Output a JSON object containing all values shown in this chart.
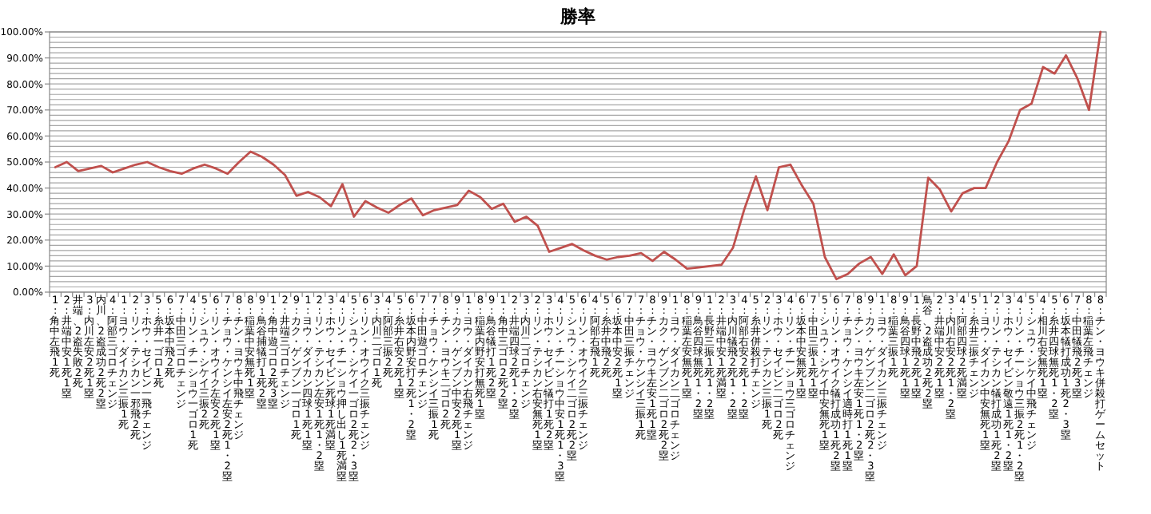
{
  "chart_data": {
    "type": "line",
    "title": "勝率",
    "color": "#c0504d",
    "grid": "y",
    "ylim": [
      0,
      100
    ],
    "yticks": [
      {
        "value": 0,
        "label": "0.00%"
      },
      {
        "value": 2,
        "label": null
      },
      {
        "value": 4,
        "label": null
      },
      {
        "value": 6,
        "label": null
      },
      {
        "value": 8,
        "label": null
      },
      {
        "value": 10,
        "label": "10.00%"
      },
      {
        "value": 12,
        "label": null
      },
      {
        "value": 14,
        "label": null
      },
      {
        "value": 16,
        "label": null
      },
      {
        "value": 18,
        "label": null
      },
      {
        "value": 20,
        "label": "20.00%"
      },
      {
        "value": 22,
        "label": null
      },
      {
        "value": 24,
        "label": null
      },
      {
        "value": 26,
        "label": null
      },
      {
        "value": 28,
        "label": null
      },
      {
        "value": 30,
        "label": "30.00%"
      },
      {
        "value": 32,
        "label": null
      },
      {
        "value": 34,
        "label": null
      },
      {
        "value": 36,
        "label": null
      },
      {
        "value": 38,
        "label": null
      },
      {
        "value": 40,
        "label": "40.00%"
      },
      {
        "value": 42,
        "label": null
      },
      {
        "value": 44,
        "label": null
      },
      {
        "value": 46,
        "label": null
      },
      {
        "value": 48,
        "label": null
      },
      {
        "value": 50,
        "label": "50.00%"
      },
      {
        "value": 52,
        "label": null
      },
      {
        "value": 54,
        "label": null
      },
      {
        "value": 56,
        "label": null
      },
      {
        "value": 58,
        "label": null
      },
      {
        "value": 60,
        "label": "60.00%"
      },
      {
        "value": 62,
        "label": null
      },
      {
        "value": 64,
        "label": null
      },
      {
        "value": 66,
        "label": null
      },
      {
        "value": 68,
        "label": null
      },
      {
        "value": 70,
        "label": "70.00%"
      },
      {
        "value": 72,
        "label": null
      },
      {
        "value": 74,
        "label": null
      },
      {
        "value": 76,
        "label": null
      },
      {
        "value": 78,
        "label": null
      },
      {
        "value": 80,
        "label": "80.00%"
      },
      {
        "value": 82,
        "label": null
      },
      {
        "value": 84,
        "label": null
      },
      {
        "value": 86,
        "label": null
      },
      {
        "value": 88,
        "label": null
      },
      {
        "value": 90,
        "label": "90.00%"
      },
      {
        "value": 92,
        "label": null
      },
      {
        "value": 94,
        "label": null
      },
      {
        "value": 96,
        "label": null
      },
      {
        "value": 98,
        "label": null
      },
      {
        "value": 100,
        "label": "100.00%"
      }
    ],
    "categories": [
      "1:角中左飛1死",
      "2:井端中安1死1塁",
      "井端、2盗失敗2死",
      "3:内川左安2死1塁",
      "内川、2盗成功2死2塁",
      "4:阿部三ゴロチェンジ",
      "1:ヨウ・ダイカン三振1死",
      "2:リン・テシカン一邪飛2死",
      "3:ホウ・セイビン一飛チェンジ",
      "5:糸井一ゴロ1死",
      "6:坂本中飛2死",
      "7:中田三ゴロチェンジ",
      "4:リン・チーショウ一ゴロ1死",
      "5:シュウ・シケイ三振2死",
      "6:リン・オウイク左安2死1塁",
      "7:チョウ・ケンシイ左安2死1・2塁",
      "8:チン・ヨウキ中飛チェンジ",
      "8:稲葉中安無死1塁",
      "9:鳥谷捕犠打1死2塁",
      "1:角中遊ゴロ2死3塁",
      "2:井端三ゴロチェンジ",
      "9:カク・ゲンブン一ゴロ1死",
      "1:ヨウ・ダイカン四球1死1塁",
      "2:リン・テシカン左安1死1・2塁",
      "3:ホウ・セイビン死球1死満塁",
      "4:リン・チーショウ押し出し1死満塁",
      "5:シュウ・シケイ一ゴロ2死2・3塁",
      "6:リン・オウイク三振チェンジ",
      "3:内川二ゴロ1死",
      "4:阿部三振2死",
      "5:糸井右安2死1塁",
      "6:坂本内野安打2死1・2塁",
      "7:中田遊ゴロチェンジ",
      "7:チョウ・ケンシイ三振1死",
      "8:チン・ヨウキ二ゴロ2死",
      "9:カク・ゲンブン中安2死1塁",
      "1:ヨウ・ダイカン右飛チェンジ",
      "8:稲葉内野安打無死1塁",
      "9:鳥谷犠打1死2塁",
      "1:角中三ゴロ2死2塁",
      "2:井端四球2死1・2塁",
      "3:内川二ゴロチェンジ",
      "2:リン・テシカン右安無死1塁",
      "3:ホウ・セイビン犠打1死2塁",
      "4:リン・チーショウ中安1死1・3塁",
      "5:シュウ・シケイ二ゴロ2死2塁",
      "6:リン・オウイク三振チェンジ",
      "4:阿部右飛1死",
      "5:糸井中飛2死",
      "6:坂本中安2死1塁",
      "7:中田三振チェンジ",
      "7:チョウ・ケンシイ三振1死",
      "8:チン・ヨウキ左安1死1塁",
      "9:カク・ゲンブン二ゴロ2死2塁",
      "1:ヨウ・ダイカン二ゴロチェンジ",
      "8:稲葉左安無死1塁",
      "9:鳥谷四球無死1・2塁",
      "1:長野三振1死1・2塁",
      "2:井端中安1死満塁",
      "3:内川犠飛2死1・2塁",
      "4:阿部右安2死1・2塁",
      "5:糸井併殺打チェンジ",
      "2:リン・テシカン三振1死",
      "3:ホウ・セイビン二ゴロ2死",
      "4:リン・チーショウ三ゴロチェンジ",
      "6:坂本中安無死1塁",
      "7:中田三振1死1塁",
      "5:シュウ・シケイ中安無死1塁",
      "6:リン・オウイク犠打成功1死2塁",
      "7:チョウ・ケンシイ適時打1死1塁",
      "8:チン・ヨウキ左安1死1・2塁",
      "9:カク・ゲンブン二ゴロ2死2・3塁",
      "1:ヨウ・ダイカン三振チェンジ",
      "8:稲葉三振1死",
      "9:鳥谷四球1死1塁",
      "1:長野中飛2死1塁",
      "鳥谷、2盗成功2死2塁",
      "2:井端中安2死1塁",
      "3:内川右安2死1・2塁",
      "4:阿部四球2死満塁",
      "5:糸井三振チェンジ",
      "1:ヨウ・ダイカン中安無死1塁",
      "2:リン・テシカン犠打成功1死2塁",
      "3:ホウ・セイビン敬遠1死1・2塁",
      "4:リン・チーショウ三振2死1・2塁",
      "5:シュウ・シケイ中飛チェンジ",
      "4:相川右安無死1塁",
      "5:糸井四球無死1・2塁",
      "6:坂本犠打成功1死2・3塁",
      "7:中田犠飛2死3塁",
      "8:稲葉左飛チェンジ",
      "8:チン・ヨウキ併殺打ゲームセット"
    ],
    "values": [
      48,
      50,
      46.5,
      47.5,
      48.5,
      46,
      47.5,
      49,
      50,
      48,
      46.5,
      45.5,
      47.5,
      49,
      47.5,
      45.5,
      50,
      54,
      52,
      49,
      45,
      37,
      38.5,
      36.5,
      33,
      41.5,
      29,
      35,
      32.5,
      30.5,
      33.5,
      36,
      29.5,
      31.5,
      32.5,
      33.5,
      39,
      36.5,
      32,
      34,
      27,
      29,
      25.5,
      15.5,
      17,
      18.5,
      16,
      14,
      12.5,
      13.5,
      14,
      15,
      12,
      15.5,
      12.5,
      9,
      9.5,
      10,
      10.5,
      17,
      32,
      44.5,
      31.5,
      48,
      49,
      41,
      34,
      13.5,
      5,
      7,
      11,
      13.5,
      7,
      14.5,
      6.5,
      10,
      44,
      39.5,
      31,
      38,
      40,
      40,
      50,
      58,
      70,
      72.5,
      86.5,
      84,
      91,
      82,
      70,
      100
    ]
  }
}
